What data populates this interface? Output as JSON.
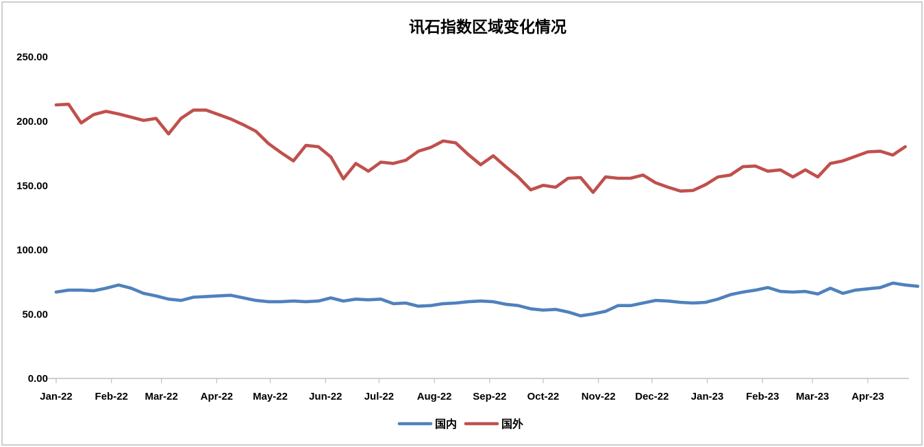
{
  "window": {
    "background": "#ffffff",
    "frame_border_color": "#cdcdcd",
    "axis_line_color": "#bfbfbf"
  },
  "chart_data": {
    "type": "line",
    "title": "讯石指数区域变化情况",
    "x_tick_labels": [
      "Jan-22",
      "Feb-22",
      "Mar-22",
      "Apr-22",
      "May-22",
      "Jun-22",
      "Jul-22",
      "Aug-22",
      "Sep-22",
      "Oct-22",
      "Nov-22",
      "Dec-22",
      "Jan-23",
      "Feb-23",
      "Mar-23",
      "Apr-23"
    ],
    "y_tick_labels": [
      "250.00",
      "200.00",
      "150.00",
      "100.00",
      "50.00",
      "0.00"
    ],
    "ylim": [
      0,
      250
    ],
    "y_major_unit": 50,
    "x_axis_unit": "week",
    "grid": "off",
    "legend_position": "bottom-center",
    "series": [
      {
        "id": "domestic",
        "name": "国内",
        "color": "#4F81BD",
        "values": [
          67,
          68.5,
          68.5,
          68,
          70,
          72.5,
          70,
          66,
          64,
          61.5,
          60.5,
          63,
          63.5,
          64,
          64.5,
          62.5,
          60.5,
          59.5,
          59.5,
          60,
          59.5,
          60,
          62.5,
          60,
          61.5,
          61,
          61.5,
          58,
          58.5,
          56,
          56.5,
          58,
          58.5,
          59.5,
          60,
          59.5,
          57.5,
          56.5,
          54,
          53,
          53.5,
          51.5,
          48.5,
          50,
          52,
          56.5,
          56.5,
          58.5,
          60.5,
          60,
          59,
          58.5,
          59,
          61.5,
          65,
          67,
          68.5,
          70.5,
          67.5,
          67,
          67.5,
          65.5,
          70,
          66,
          68.5,
          69.5,
          70.5,
          74,
          72.5,
          71.5
        ]
      },
      {
        "id": "foreign",
        "name": "国外",
        "color": "#C0504D",
        "values": [
          212.5,
          213,
          198.5,
          205,
          207.5,
          205.5,
          203,
          200.5,
          202,
          190,
          202,
          208.5,
          208.5,
          205,
          201.5,
          197,
          192,
          182.5,
          175.5,
          169,
          181,
          180,
          172,
          155,
          167,
          161,
          168,
          167,
          169.5,
          176.5,
          179.5,
          184.5,
          183,
          174,
          166,
          173,
          164.5,
          156.5,
          146.5,
          150,
          148.5,
          155.5,
          156,
          144.5,
          156.5,
          155.5,
          155.5,
          158,
          152,
          148.5,
          145.5,
          146,
          150.5,
          156.5,
          158,
          164.5,
          165,
          161,
          162,
          156.5,
          162,
          156.5,
          167,
          169,
          172.5,
          176,
          176.5,
          173.5,
          180
        ]
      }
    ]
  },
  "legend": {
    "items": [
      {
        "label": "国内",
        "color": "#4F81BD"
      },
      {
        "label": "国外",
        "color": "#C0504D"
      }
    ]
  }
}
